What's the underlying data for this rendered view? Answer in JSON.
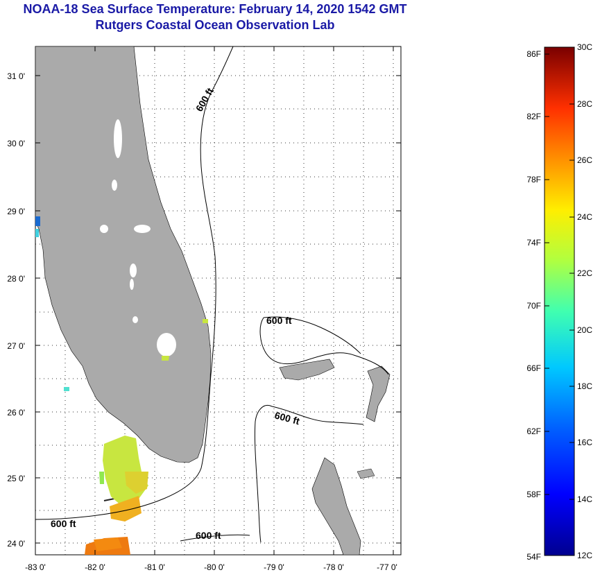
{
  "header": {
    "title": "NOAA-18 Sea Surface Temperature:  February 14, 2020 1542 GMT",
    "subtitle": "Rutgers Coastal Ocean Observation Lab"
  },
  "map": {
    "lon_ticks": [
      "-83 0'",
      "-82 0'",
      "-81 0'",
      "-80 0'",
      "-79 0'",
      "-78 0'",
      "-77 0'"
    ],
    "lat_ticks": [
      "31 0'",
      "30 0'",
      "29 0'",
      "28 0'",
      "27 0'",
      "26 0'",
      "25 0'",
      "24 0'"
    ],
    "contour_labels": [
      "600 ft",
      "600 ft",
      "600 ft",
      "600 ft",
      "600 ft"
    ]
  },
  "colorbar": {
    "fahrenheit_labels": [
      "86F",
      "82F",
      "78F",
      "74F",
      "70F",
      "66F",
      "62F",
      "58F",
      "54F"
    ],
    "celsius_labels": [
      "30C",
      "28C",
      "26C",
      "24C",
      "22C",
      "20C",
      "18C",
      "16C",
      "14C",
      "12C"
    ]
  },
  "colors": {
    "title": "#1a1aa6",
    "land": "#aaaaaa",
    "warm": "#d4700a",
    "cool": "#1040a0"
  }
}
